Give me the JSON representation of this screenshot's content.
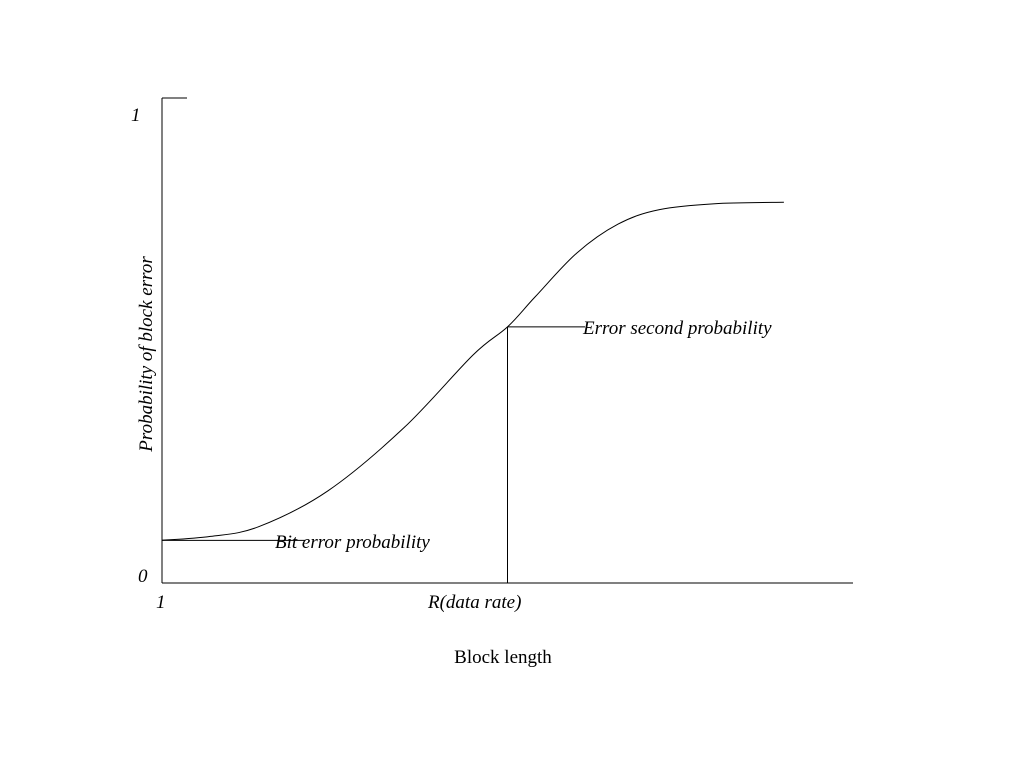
{
  "chart_data": {
    "type": "line",
    "xlabel": "Block length",
    "ylabel": "Probability of block error",
    "x_tick_labels": [
      "1",
      "R(data rate)"
    ],
    "y_tick_labels": [
      "0",
      "1"
    ],
    "ylim": [
      0,
      1
    ],
    "grid": false,
    "series": [
      {
        "x": [
          0.0,
          0.07,
          0.14,
          0.24,
          0.35,
          0.45,
          0.5,
          0.54,
          0.6,
          0.66,
          0.72,
          0.8,
          0.9
        ],
        "y": [
          0.088,
          0.096,
          0.116,
          0.19,
          0.32,
          0.47,
          0.528,
          0.59,
          0.68,
          0.74,
          0.77,
          0.782,
          0.785
        ]
      }
    ],
    "annotations": [
      {
        "text": "Bit error probability",
        "x": 0.0,
        "y": 0.088
      },
      {
        "text": "Error second probability",
        "x": 0.5,
        "y": 0.528
      }
    ]
  }
}
